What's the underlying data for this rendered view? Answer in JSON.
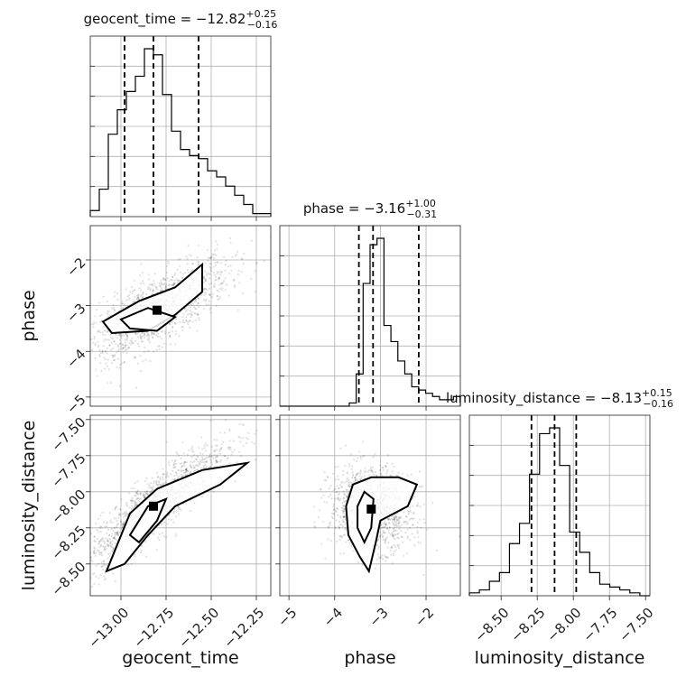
{
  "chart_data": {
    "type": "corner",
    "parameters": [
      {
        "id": "geocent_time",
        "label": "geocent_time",
        "lim": [
          -13.17,
          -12.17
        ],
        "ticks": [
          -13.0,
          -12.75,
          -12.5,
          -12.25
        ],
        "tick_labels": [
          "−13.00",
          "−12.75",
          "−12.50",
          "−12.25"
        ],
        "title_main": "geocent_time = −12.82",
        "title_sup": "+0.25",
        "title_sub": "−0.16",
        "median": -12.82,
        "q_low": -12.98,
        "q_high": -12.57,
        "hist": [
          2,
          9,
          27,
          35,
          41,
          46,
          55,
          53,
          40,
          28,
          22,
          20,
          19,
          15,
          13,
          10,
          7,
          4,
          1,
          1
        ]
      },
      {
        "id": "phase",
        "label": "phase",
        "lim": [
          -5.2,
          -1.25
        ],
        "ticks": [
          -5,
          -4,
          -3,
          -2
        ],
        "tick_labels": [
          "−5",
          "−4",
          "−3",
          "−2"
        ],
        "y_ticks": [
          -5,
          -4,
          -3,
          -2
        ],
        "title_main": "phase = −3.16",
        "title_sup": "+1.00",
        "title_sub": "−0.31",
        "median": -3.16,
        "q_low": -3.47,
        "q_high": -2.16,
        "hist": [
          0,
          0,
          0,
          0,
          0,
          0,
          0,
          0,
          0,
          0,
          1,
          10,
          38,
          50,
          52,
          25,
          20,
          14,
          10,
          6,
          5,
          4,
          3,
          2,
          2,
          3
        ]
      },
      {
        "id": "luminosity_distance",
        "label": "luminosity_distance",
        "lim": [
          -8.72,
          -7.47
        ],
        "ticks": [
          -8.5,
          -8.25,
          -8.0,
          -7.75,
          -7.5
        ],
        "tick_labels": [
          "−8.50",
          "−8.25",
          "−8.00",
          "−7.75",
          "−7.50"
        ],
        "y_ticks": [
          -8.5,
          -8.25,
          -8.0,
          -7.75,
          -7.5
        ],
        "y_tick_labels": [
          "−8.50",
          "−8.25",
          "−8.00",
          "−7.75",
          "−7.50"
        ],
        "title_main": "luminosity_distance = −8.13",
        "title_sup": "+0.15",
        "title_sub": "−0.16",
        "median": -8.13,
        "q_low": -8.29,
        "q_high": -7.98,
        "hist": [
          1,
          2,
          5,
          8,
          18,
          25,
          42,
          56,
          58,
          45,
          22,
          15,
          8,
          4,
          3,
          2,
          1,
          0
        ]
      }
    ],
    "pairs": [
      {
        "x": "geocent_time",
        "y": "phase",
        "mean": [
          -12.8,
          -3.1
        ],
        "std": [
          0.2,
          0.55
        ],
        "corr": 0.75,
        "contours": [
          [
            [
              -13.1,
              -3.35
            ],
            [
              -12.9,
              -2.9
            ],
            [
              -12.7,
              -2.6
            ],
            [
              -12.55,
              -2.1
            ],
            [
              -12.55,
              -2.7
            ],
            [
              -12.7,
              -3.2
            ],
            [
              -12.85,
              -3.55
            ],
            [
              -13.05,
              -3.6
            ]
          ],
          [
            [
              -13.0,
              -3.3
            ],
            [
              -12.85,
              -3.05
            ],
            [
              -12.7,
              -3.25
            ],
            [
              -12.8,
              -3.55
            ],
            [
              -12.95,
              -3.5
            ]
          ]
        ]
      },
      {
        "x": "geocent_time",
        "y": "luminosity_distance",
        "mean": [
          -12.82,
          -8.1
        ],
        "std": [
          0.2,
          0.22
        ],
        "corr": 0.88,
        "contours": [
          [
            [
              -13.08,
              -8.55
            ],
            [
              -12.95,
              -8.15
            ],
            [
              -12.8,
              -7.98
            ],
            [
              -12.55,
              -7.85
            ],
            [
              -12.3,
              -7.8
            ],
            [
              -12.45,
              -7.95
            ],
            [
              -12.7,
              -8.1
            ],
            [
              -12.85,
              -8.3
            ],
            [
              -12.98,
              -8.5
            ]
          ],
          [
            [
              -12.95,
              -8.3
            ],
            [
              -12.85,
              -8.1
            ],
            [
              -12.75,
              -8.05
            ],
            [
              -12.8,
              -8.2
            ],
            [
              -12.9,
              -8.35
            ]
          ]
        ]
      },
      {
        "x": "phase",
        "y": "luminosity_distance",
        "mean": [
          -3.2,
          -8.12
        ],
        "std": [
          0.45,
          0.14
        ],
        "corr": -0.1,
        "contours": [
          [
            [
              -3.75,
              -8.1
            ],
            [
              -3.6,
              -7.95
            ],
            [
              -3.2,
              -7.9
            ],
            [
              -2.6,
              -7.9
            ],
            [
              -2.2,
              -7.95
            ],
            [
              -2.4,
              -8.1
            ],
            [
              -3.0,
              -8.2
            ],
            [
              -3.1,
              -8.35
            ],
            [
              -3.25,
              -8.55
            ],
            [
              -3.45,
              -8.45
            ],
            [
              -3.7,
              -8.3
            ]
          ],
          [
            [
              -3.5,
              -8.1
            ],
            [
              -3.35,
              -8.0
            ],
            [
              -3.15,
              -8.05
            ],
            [
              -3.2,
              -8.25
            ],
            [
              -3.35,
              -8.35
            ],
            [
              -3.5,
              -8.25
            ]
          ]
        ]
      }
    ]
  }
}
